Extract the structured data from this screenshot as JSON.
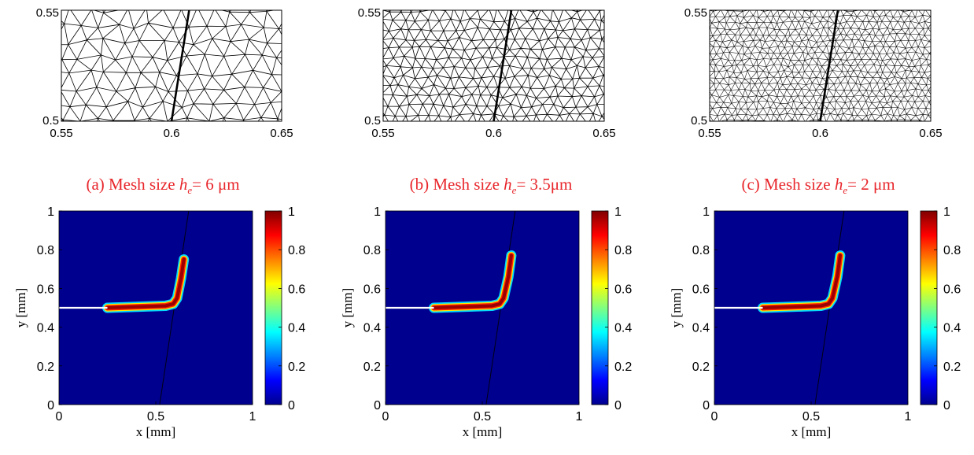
{
  "captions": [
    {
      "prefix": "(a) Mesh size ",
      "var": "h",
      "sub": "e",
      "rest": "= 6 μm"
    },
    {
      "prefix": "(b) Mesh size ",
      "var": "h",
      "sub": "e",
      "rest": "= 3.5μm"
    },
    {
      "prefix": "(c) Mesh size ",
      "var": "h",
      "sub": "e",
      "rest": "= 2 μm"
    }
  ],
  "chart_data": [
    {
      "type": "mesh",
      "panel": "a",
      "xlim": [
        0.55,
        0.65
      ],
      "ylim": [
        0.5,
        0.55
      ],
      "xticks": [
        "0.55",
        "0.6",
        "0.65"
      ],
      "yticks": [
        "0.5",
        "0.55"
      ],
      "interface_line": [
        [
          0.6,
          0.5
        ],
        [
          0.608,
          0.55
        ]
      ],
      "mesh_size_um": 6
    },
    {
      "type": "mesh",
      "panel": "b",
      "xlim": [
        0.55,
        0.65
      ],
      "ylim": [
        0.5,
        0.55
      ],
      "xticks": [
        "0.55",
        "0.6",
        "0.65"
      ],
      "yticks": [
        "0.5",
        "0.55"
      ],
      "interface_line": [
        [
          0.6,
          0.5
        ],
        [
          0.608,
          0.55
        ]
      ],
      "mesh_size_um": 3.5
    },
    {
      "type": "mesh",
      "panel": "c",
      "xlim": [
        0.55,
        0.65
      ],
      "ylim": [
        0.5,
        0.55
      ],
      "xticks": [
        "0.55",
        "0.6",
        "0.65"
      ],
      "yticks": [
        "0.5",
        "0.55"
      ],
      "interface_line": [
        [
          0.6,
          0.5
        ],
        [
          0.608,
          0.55
        ]
      ],
      "mesh_size_um": 2
    },
    {
      "type": "heatmap",
      "panel": "a",
      "xlim": [
        0,
        1
      ],
      "ylim": [
        0,
        1
      ],
      "xlabel": "x [mm]",
      "ylabel": "y [mm]",
      "xticks": [
        "0",
        "0.5",
        "1"
      ],
      "yticks": [
        "0",
        "0.2",
        "0.4",
        "0.6",
        "0.8",
        "1"
      ],
      "colorbar": {
        "range": [
          0,
          1
        ],
        "ticks": [
          "0",
          "0.2",
          "0.4",
          "0.6",
          "0.8",
          "1"
        ],
        "colormap": "jet"
      },
      "initial_crack": [
        [
          0,
          0.5
        ],
        [
          0.25,
          0.5
        ]
      ],
      "interface_line": [
        [
          0.52,
          0
        ],
        [
          0.67,
          1
        ]
      ],
      "crack_path": [
        [
          0.25,
          0.5
        ],
        [
          0.4,
          0.505
        ],
        [
          0.55,
          0.51
        ],
        [
          0.59,
          0.52
        ],
        [
          0.61,
          0.55
        ],
        [
          0.63,
          0.65
        ],
        [
          0.645,
          0.75
        ]
      ]
    },
    {
      "type": "heatmap",
      "panel": "b",
      "xlim": [
        0,
        1
      ],
      "ylim": [
        0,
        1
      ],
      "xlabel": "x [mm]",
      "ylabel": "y [mm]",
      "xticks": [
        "0",
        "0.5",
        "1"
      ],
      "yticks": [
        "0",
        "0.2",
        "0.4",
        "0.6",
        "0.8",
        "1"
      ],
      "colorbar": {
        "range": [
          0,
          1
        ],
        "ticks": [
          "0",
          "0.2",
          "0.4",
          "0.6",
          "0.8",
          "1"
        ],
        "colormap": "jet"
      },
      "initial_crack": [
        [
          0,
          0.5
        ],
        [
          0.25,
          0.5
        ]
      ],
      "interface_line": [
        [
          0.52,
          0
        ],
        [
          0.67,
          1
        ]
      ],
      "crack_path": [
        [
          0.25,
          0.5
        ],
        [
          0.4,
          0.505
        ],
        [
          0.55,
          0.51
        ],
        [
          0.59,
          0.52
        ],
        [
          0.61,
          0.55
        ],
        [
          0.635,
          0.66
        ],
        [
          0.65,
          0.77
        ]
      ]
    },
    {
      "type": "heatmap",
      "panel": "c",
      "xlim": [
        0,
        1
      ],
      "ylim": [
        0,
        1
      ],
      "xlabel": "x [mm]",
      "ylabel": "y [mm]",
      "xticks": [
        "0",
        "0.5",
        "1"
      ],
      "yticks": [
        "0",
        "0.2",
        "0.4",
        "0.6",
        "0.8",
        "1"
      ],
      "colorbar": {
        "range": [
          0,
          1
        ],
        "ticks": [
          "0",
          "0.2",
          "0.4",
          "0.6",
          "0.8",
          "1"
        ],
        "colormap": "jet"
      },
      "initial_crack": [
        [
          0,
          0.5
        ],
        [
          0.25,
          0.5
        ]
      ],
      "interface_line": [
        [
          0.52,
          0
        ],
        [
          0.67,
          1
        ]
      ],
      "crack_path": [
        [
          0.25,
          0.5
        ],
        [
          0.4,
          0.505
        ],
        [
          0.55,
          0.51
        ],
        [
          0.59,
          0.52
        ],
        [
          0.61,
          0.55
        ],
        [
          0.635,
          0.66
        ],
        [
          0.65,
          0.77
        ]
      ]
    }
  ]
}
